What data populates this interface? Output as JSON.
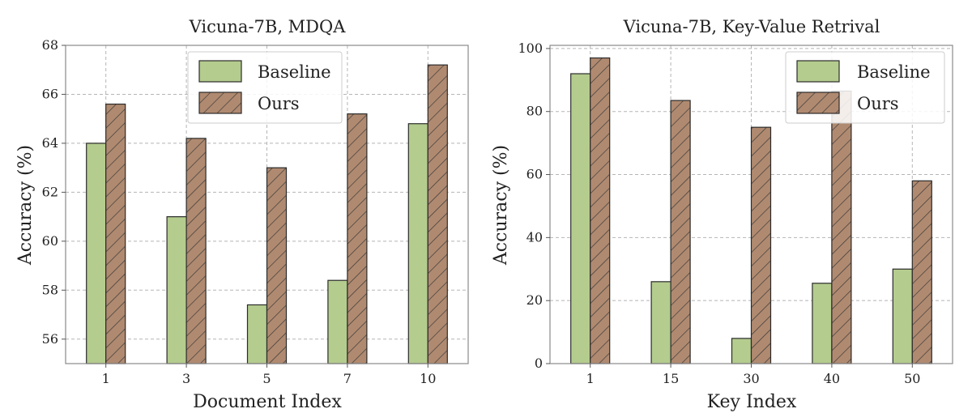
{
  "colors": {
    "baseline_fill": "#b4cc8e",
    "ours_fill": "#b08a70",
    "bar_edge": "#2b2b2b",
    "grid": "#b5b5b5",
    "hatch": "#3a3a3a"
  },
  "chart_data": [
    {
      "type": "bar",
      "title": "Vicuna-7B, MDQA",
      "xlabel": "Document Index",
      "ylabel": "Accuracy (%)",
      "categories": [
        "1",
        "3",
        "5",
        "7",
        "10"
      ],
      "ylim": [
        55,
        68
      ],
      "yticks": [
        56,
        58,
        60,
        62,
        64,
        66,
        68
      ],
      "grid": true,
      "legend_position": "top-right",
      "series": [
        {
          "name": "Baseline",
          "values": [
            64.0,
            61.0,
            57.4,
            58.4,
            64.8
          ]
        },
        {
          "name": "Ours",
          "values": [
            65.6,
            64.2,
            63.0,
            65.2,
            67.2
          ]
        }
      ]
    },
    {
      "type": "bar",
      "title": "Vicuna-7B, Key-Value Retrival",
      "xlabel": "Key Index",
      "ylabel": "Accuracy (%)",
      "categories": [
        "1",
        "15",
        "30",
        "40",
        "50"
      ],
      "ylim": [
        0,
        101
      ],
      "yticks": [
        0,
        20,
        40,
        60,
        80,
        100
      ],
      "grid": true,
      "legend_position": "top-right",
      "series": [
        {
          "name": "Baseline",
          "values": [
            92.0,
            26.0,
            8.0,
            25.5,
            30.0
          ]
        },
        {
          "name": "Ours",
          "values": [
            97.0,
            83.5,
            75.0,
            86.5,
            58.0
          ]
        }
      ]
    }
  ]
}
